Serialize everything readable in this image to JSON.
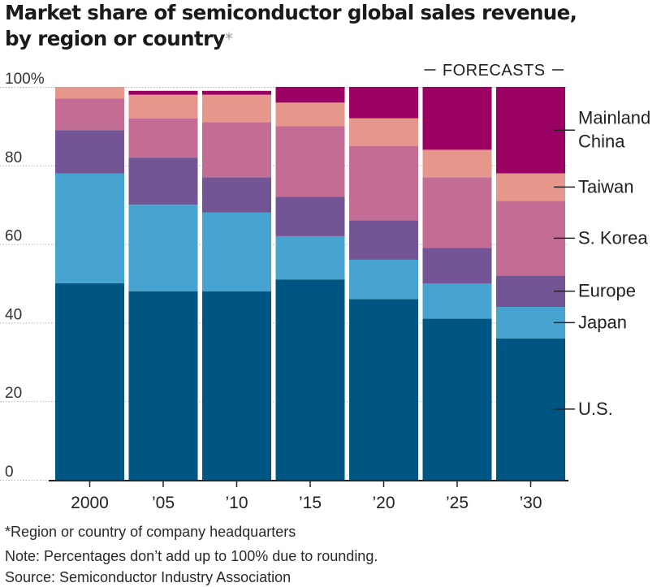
{
  "title": "Market share of semiconductor global sales revenue, by region or country",
  "title_line1": "Market share of semiconductor global sales revenue,",
  "title_line2": "by region or country",
  "title_marker": "*",
  "footnotes": {
    "region": "*Region or country of company headquarters",
    "note": "Note: Percentages don’t add up to 100% due to rounding.",
    "source": "Source: Semiconductor Industry Association"
  },
  "colors": {
    "us": "#005682",
    "japan": "#47a3cf",
    "europe": "#735595",
    "skorea": "#c36c94",
    "taiwan": "#e6978b",
    "china": "#9b0063"
  },
  "chart_data": {
    "type": "bar",
    "stacked": true,
    "title": "Market share of semiconductor global sales revenue, by region or country*",
    "categories": [
      "2000",
      "’05",
      "’10",
      "’15",
      "’20",
      "’25",
      "’30"
    ],
    "ylim": [
      0,
      100
    ],
    "yticks": [
      0,
      20,
      40,
      60,
      80,
      100
    ],
    "ytick_labels": [
      "0",
      "20",
      "40",
      "60",
      "80",
      "100%"
    ],
    "forecast_label": "FORECASTS",
    "forecast_start_index": 5,
    "series": [
      {
        "key": "us",
        "name": "U.S.",
        "values": [
          50,
          48,
          48,
          51,
          46,
          41,
          36
        ]
      },
      {
        "key": "japan",
        "name": "Japan",
        "values": [
          28,
          22,
          20,
          11,
          10,
          9,
          8
        ]
      },
      {
        "key": "europe",
        "name": "Europe",
        "values": [
          11,
          12,
          9,
          10,
          10,
          9,
          8
        ]
      },
      {
        "key": "skorea",
        "name": "S. Korea",
        "values": [
          8,
          10,
          14,
          18,
          19,
          18,
          19
        ]
      },
      {
        "key": "taiwan",
        "name": "Taiwan",
        "values": [
          3,
          6,
          7,
          6,
          7,
          7,
          7
        ]
      },
      {
        "key": "china",
        "name": "Mainland China",
        "values": [
          0,
          1,
          1,
          5,
          9,
          16,
          22
        ]
      }
    ],
    "legend": [
      {
        "key": "china",
        "lines": [
          "Mainland",
          "China"
        ]
      },
      {
        "key": "taiwan",
        "lines": [
          "Taiwan"
        ]
      },
      {
        "key": "skorea",
        "lines": [
          "S. Korea"
        ]
      },
      {
        "key": "europe",
        "lines": [
          "Europe"
        ]
      },
      {
        "key": "japan",
        "lines": [
          "Japan"
        ]
      },
      {
        "key": "us",
        "lines": [
          "U.S."
        ]
      }
    ]
  }
}
